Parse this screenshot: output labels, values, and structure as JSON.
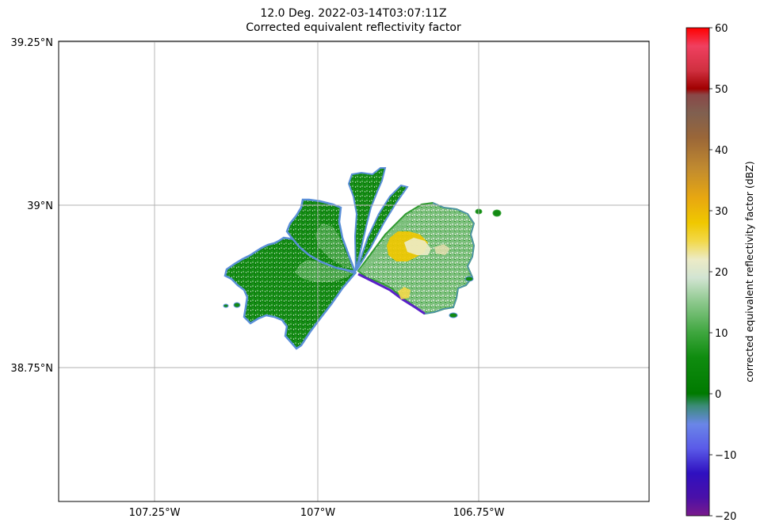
{
  "title": {
    "line1": "12.0 Deg. 2022-03-14T03:07:11Z",
    "line2": "Corrected equivalent reflectivity factor"
  },
  "map": {
    "lat_ticks": [
      "39.25°N",
      "39°N",
      "38.75°N"
    ],
    "lon_ticks": [
      "107.25°W",
      "107°W",
      "106.75°W"
    ],
    "grid": true,
    "extent": {
      "lon_min": -107.397,
      "lon_max": -106.488,
      "lat_min": 38.544,
      "lat_max": 39.254
    },
    "radar_site": {
      "lon": -106.94,
      "lat": 38.89
    }
  },
  "colorbar": {
    "label": "corrected equivalent reflectivity factor (dBZ)",
    "ticks": [
      "60",
      "50",
      "40",
      "30",
      "20",
      "10",
      "0",
      "−10",
      "−20"
    ],
    "range": [
      -20,
      60
    ],
    "colors": [
      {
        "value": -20,
        "color": "#7a1a8c"
      },
      {
        "value": -17,
        "color": "#4a10a8"
      },
      {
        "value": -13,
        "color": "#2f10c0"
      },
      {
        "value": -9,
        "color": "#5a5ae8"
      },
      {
        "value": -5,
        "color": "#6a86e8"
      },
      {
        "value": -2,
        "color": "#3c8c78"
      },
      {
        "value": 0,
        "color": "#007a00"
      },
      {
        "value": 6,
        "color": "#0f8c0f"
      },
      {
        "value": 10,
        "color": "#3ea63e"
      },
      {
        "value": 15,
        "color": "#8cc88c"
      },
      {
        "value": 19,
        "color": "#d2e4d2"
      },
      {
        "value": 22,
        "color": "#ecebc6"
      },
      {
        "value": 25,
        "color": "#f2d84a"
      },
      {
        "value": 28,
        "color": "#f0c800"
      },
      {
        "value": 32,
        "color": "#e8a810"
      },
      {
        "value": 37,
        "color": "#c08a30"
      },
      {
        "value": 42,
        "color": "#9a6638"
      },
      {
        "value": 46,
        "color": "#806050"
      },
      {
        "value": 49,
        "color": "#8a4848"
      },
      {
        "value": 50,
        "color": "#a00000"
      },
      {
        "value": 53,
        "color": "#d03040"
      },
      {
        "value": 57,
        "color": "#f04060"
      },
      {
        "value": 60,
        "color": "#ff0000"
      }
    ]
  }
}
